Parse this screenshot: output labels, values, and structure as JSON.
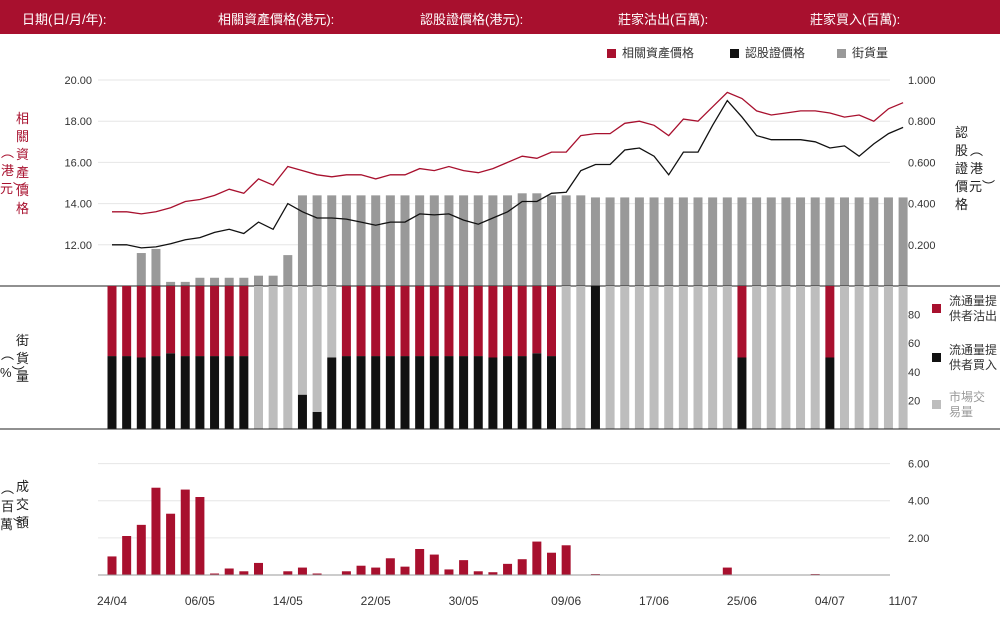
{
  "header": {
    "date_label": "日期(日/月/年):",
    "underlying_label": "相關資產價格(港元):",
    "warrant_label": "認股證價格(港元):",
    "sell_label": "莊家沽出(百萬):",
    "buy_label": "莊家買入(百萬):"
  },
  "legend": {
    "underlying": "相關資產價格",
    "warrant": "認股證價格",
    "outstanding": "街貨量"
  },
  "axis_titles": {
    "left_top": "相關資產價格",
    "left_top_unit": "港元",
    "right_top": "認股證價格",
    "right_top_unit": "港元",
    "mid_left": "街貨量",
    "mid_unit": "%",
    "bottom_left": "成交額",
    "bottom_unit": "百萬"
  },
  "mid_legend": {
    "sell": "流通量提供者沽出",
    "buy": "流通量提供者買入",
    "market": "市場交易量"
  },
  "colors": {
    "brand": "#a8102e",
    "black": "#111111",
    "gray_dark": "#999999",
    "gray_light": "#bdbdbd",
    "grid": "#e6e6e6"
  },
  "chart_data": [
    {
      "type": "line",
      "x_ticks": [
        "24/04",
        "06/05",
        "14/05",
        "22/05",
        "30/05",
        "09/06",
        "17/06",
        "25/06",
        "04/07",
        "11/07"
      ],
      "left_axis": {
        "ylim": [
          10,
          20
        ],
        "ticks": [
          "20.00",
          "18.00",
          "16.00",
          "14.00",
          "12.00"
        ]
      },
      "right_axis": {
        "ylim": [
          0,
          1
        ],
        "ticks": [
          "1.000",
          "0.800",
          "0.600",
          "0.400",
          "0.200"
        ]
      },
      "series": [
        {
          "name": "相關資產價格",
          "axis": "left",
          "values": [
            13.6,
            13.6,
            13.5,
            13.6,
            13.8,
            14.1,
            14.2,
            14.4,
            14.7,
            14.5,
            15.2,
            14.9,
            15.8,
            15.6,
            15.4,
            15.3,
            15.4,
            15.4,
            15.2,
            15.4,
            15.4,
            15.7,
            15.6,
            15.8,
            15.6,
            15.5,
            15.7,
            16.0,
            16.3,
            16.2,
            16.5,
            16.5,
            17.3,
            17.4,
            17.4,
            17.9,
            18.0,
            17.8,
            17.3,
            18.1,
            18.0,
            18.7,
            19.4,
            19.1,
            18.5,
            18.3,
            18.4,
            18.5,
            18.5,
            18.4,
            18.2,
            18.3,
            18.0,
            18.6,
            18.9
          ]
        },
        {
          "name": "認股證價格",
          "axis": "right",
          "values": [
            0.2,
            0.2,
            0.185,
            0.19,
            0.205,
            0.225,
            0.235,
            0.26,
            0.275,
            0.255,
            0.31,
            0.275,
            0.4,
            0.36,
            0.33,
            0.33,
            0.325,
            0.31,
            0.295,
            0.31,
            0.31,
            0.35,
            0.345,
            0.35,
            0.32,
            0.3,
            0.33,
            0.36,
            0.41,
            0.41,
            0.45,
            0.455,
            0.56,
            0.59,
            0.59,
            0.66,
            0.67,
            0.63,
            0.54,
            0.65,
            0.65,
            0.78,
            0.9,
            0.82,
            0.73,
            0.71,
            0.71,
            0.71,
            0.7,
            0.67,
            0.68,
            0.63,
            0.69,
            0.74,
            0.77
          ]
        }
      ]
    },
    {
      "type": "bar",
      "name": "街貨量",
      "ylim": [
        0,
        1
      ],
      "values": [
        0.0,
        0.0,
        0.16,
        0.18,
        0.02,
        0.02,
        0.04,
        0.04,
        0.04,
        0.04,
        0.05,
        0.05,
        0.15,
        0.44,
        0.44,
        0.44,
        0.44,
        0.44,
        0.44,
        0.44,
        0.44,
        0.44,
        0.44,
        0.44,
        0.44,
        0.44,
        0.44,
        0.44,
        0.45,
        0.45,
        0.44,
        0.44,
        0.44,
        0.43,
        0.43,
        0.43,
        0.43,
        0.43,
        0.43,
        0.43,
        0.43,
        0.43,
        0.43,
        0.43,
        0.43,
        0.43,
        0.43,
        0.43,
        0.43,
        0.43,
        0.43,
        0.43,
        0.43,
        0.43,
        0.43
      ]
    },
    {
      "type": "bar",
      "name": "街貨量 %",
      "ylim": [
        0,
        100
      ],
      "y_ticks": [
        "80",
        "60",
        "40",
        "20"
      ],
      "series": [
        {
          "name": "流通量提供者沽出",
          "values": [
            49,
            49,
            50,
            49,
            47,
            49,
            49,
            49,
            49,
            49,
            0,
            0,
            0,
            0,
            0,
            0,
            49,
            49,
            49,
            49,
            49,
            49,
            49,
            49,
            49,
            49,
            50,
            49,
            49,
            47,
            49,
            0,
            0,
            0,
            0,
            0,
            0,
            0,
            0,
            0,
            0,
            0,
            0,
            50,
            0,
            0,
            0,
            0,
            0,
            50,
            0,
            0,
            0,
            0,
            0
          ]
        },
        {
          "name": "流通量提供者買入",
          "values": [
            51,
            51,
            50,
            51,
            53,
            51,
            51,
            51,
            51,
            51,
            0,
            0,
            0,
            24,
            12,
            50,
            51,
            51,
            51,
            51,
            51,
            51,
            51,
            51,
            51,
            51,
            50,
            51,
            51,
            53,
            51,
            0,
            0,
            100,
            0,
            0,
            0,
            0,
            0,
            0,
            0,
            0,
            0,
            50,
            0,
            0,
            0,
            0,
            0,
            50,
            0,
            0,
            0,
            0,
            0
          ]
        },
        {
          "name": "市場交易量",
          "values": [
            0,
            0,
            0,
            0,
            0,
            0,
            0,
            0,
            0,
            0,
            100,
            100,
            100,
            76,
            88,
            50,
            0,
            0,
            0,
            0,
            0,
            0,
            0,
            0,
            0,
            0,
            0,
            0,
            0,
            0,
            0,
            100,
            100,
            0,
            100,
            100,
            100,
            100,
            100,
            100,
            100,
            100,
            100,
            0,
            100,
            100,
            100,
            100,
            100,
            0,
            100,
            100,
            100,
            100,
            100
          ]
        }
      ]
    },
    {
      "type": "bar",
      "name": "成交額",
      "ylim": [
        0,
        7
      ],
      "y_ticks": [
        "6.00",
        "4.00",
        "2.00"
      ],
      "values": [
        1.0,
        2.1,
        2.7,
        4.7,
        3.3,
        4.6,
        4.2,
        0.08,
        0.35,
        0.2,
        0.65,
        0,
        0.2,
        0.4,
        0.08,
        0,
        0.2,
        0.5,
        0.4,
        0.9,
        0.45,
        1.4,
        1.1,
        0.3,
        0.8,
        0.2,
        0.15,
        0.6,
        0.85,
        1.8,
        1.2,
        1.6,
        0,
        0.05,
        0,
        0,
        0,
        0,
        0,
        0,
        0,
        0,
        0.4,
        0,
        0,
        0,
        0,
        0,
        0.05,
        0,
        0,
        0,
        0,
        0,
        0
      ]
    }
  ]
}
